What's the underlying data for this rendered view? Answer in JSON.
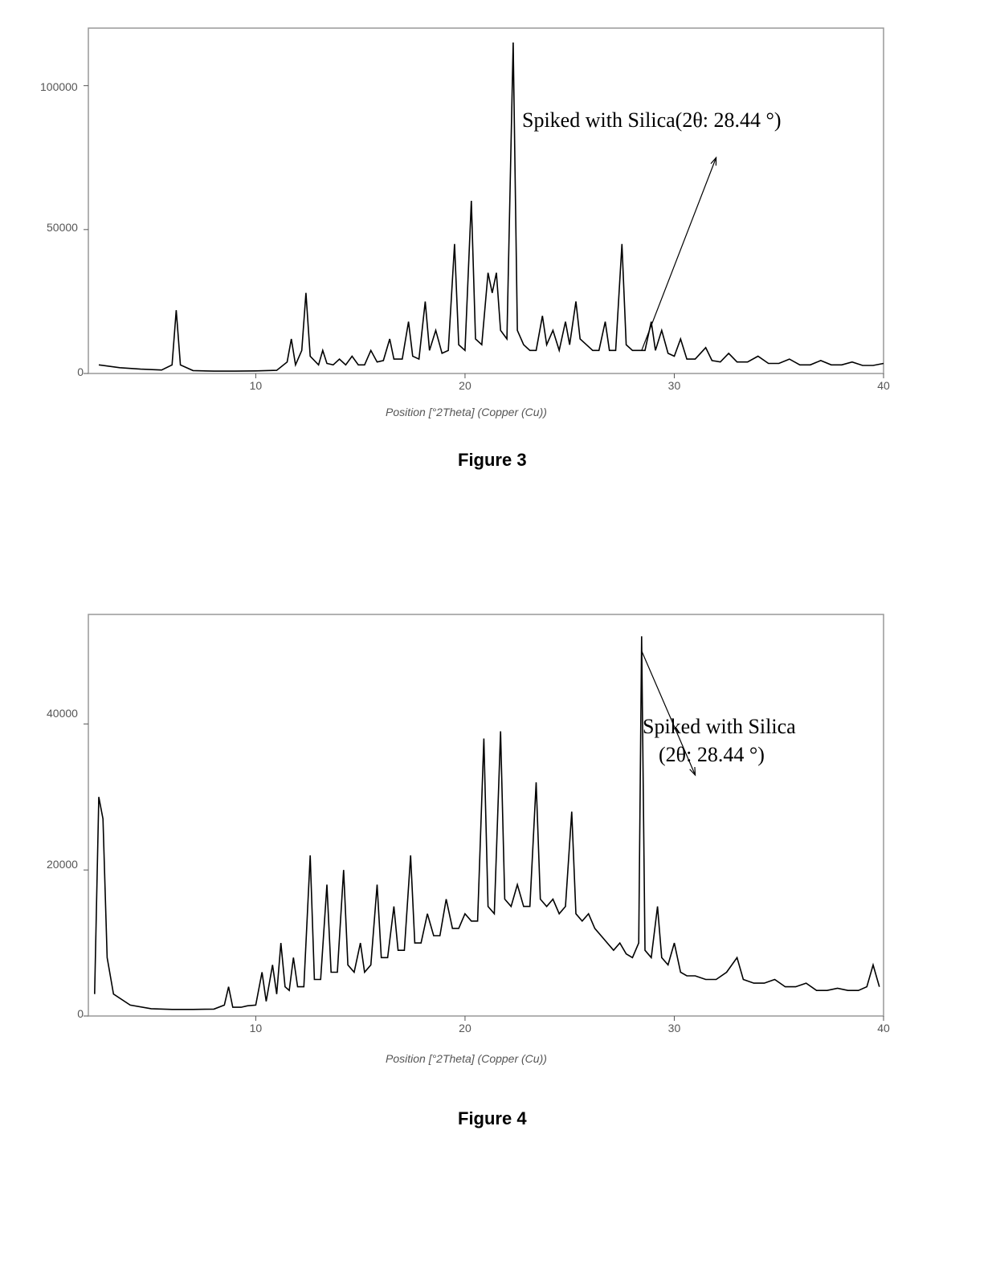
{
  "figure3": {
    "type": "line",
    "caption": "Figure 3",
    "annotation_line1": "Spiked with Silica(2θ: 28.44 °)",
    "xaxis_label": "Position [°2Theta] (Copper (Cu))",
    "xlim": [
      2,
      40
    ],
    "ylim": [
      0,
      120000
    ],
    "xticks": [
      10,
      20,
      30,
      40
    ],
    "yticks": [
      0,
      50000,
      100000
    ],
    "tick_labels_x": [
      "10",
      "20",
      "30",
      "40"
    ],
    "tick_labels_y": [
      "0",
      "50000",
      "100000"
    ],
    "line_color": "#000000",
    "background_color": "#ffffff",
    "border_color": "#999999",
    "arrow_target": [
      28.44,
      8000
    ],
    "arrow_source": [
      32,
      75000
    ],
    "data": [
      [
        2.5,
        3000
      ],
      [
        3.5,
        2000
      ],
      [
        4.5,
        1500
      ],
      [
        5.5,
        1200
      ],
      [
        6.0,
        3000
      ],
      [
        6.2,
        22000
      ],
      [
        6.4,
        3000
      ],
      [
        7.0,
        1000
      ],
      [
        8.0,
        800
      ],
      [
        9.0,
        800
      ],
      [
        10.0,
        900
      ],
      [
        11.0,
        1100
      ],
      [
        11.5,
        4000
      ],
      [
        11.7,
        12000
      ],
      [
        11.9,
        3000
      ],
      [
        12.2,
        8000
      ],
      [
        12.4,
        28000
      ],
      [
        12.6,
        6000
      ],
      [
        13.0,
        3000
      ],
      [
        13.2,
        8000
      ],
      [
        13.4,
        3500
      ],
      [
        13.7,
        3000
      ],
      [
        14.0,
        5000
      ],
      [
        14.3,
        3000
      ],
      [
        14.6,
        6000
      ],
      [
        14.9,
        3000
      ],
      [
        15.2,
        3000
      ],
      [
        15.5,
        8000
      ],
      [
        15.8,
        4000
      ],
      [
        16.1,
        4500
      ],
      [
        16.4,
        12000
      ],
      [
        16.6,
        5000
      ],
      [
        17.0,
        5000
      ],
      [
        17.3,
        18000
      ],
      [
        17.5,
        6000
      ],
      [
        17.8,
        5000
      ],
      [
        18.1,
        25000
      ],
      [
        18.3,
        8000
      ],
      [
        18.6,
        15000
      ],
      [
        18.9,
        7000
      ],
      [
        19.2,
        8000
      ],
      [
        19.5,
        45000
      ],
      [
        19.7,
        10000
      ],
      [
        20.0,
        8000
      ],
      [
        20.3,
        60000
      ],
      [
        20.5,
        12000
      ],
      [
        20.8,
        10000
      ],
      [
        21.1,
        35000
      ],
      [
        21.3,
        28000
      ],
      [
        21.5,
        35000
      ],
      [
        21.7,
        15000
      ],
      [
        22.0,
        12000
      ],
      [
        22.3,
        115000
      ],
      [
        22.5,
        15000
      ],
      [
        22.8,
        10000
      ],
      [
        23.1,
        8000
      ],
      [
        23.4,
        8000
      ],
      [
        23.7,
        20000
      ],
      [
        23.9,
        10000
      ],
      [
        24.2,
        15000
      ],
      [
        24.5,
        8000
      ],
      [
        24.8,
        18000
      ],
      [
        25.0,
        10000
      ],
      [
        25.3,
        25000
      ],
      [
        25.5,
        12000
      ],
      [
        25.8,
        10000
      ],
      [
        26.1,
        8000
      ],
      [
        26.4,
        8000
      ],
      [
        26.7,
        18000
      ],
      [
        26.9,
        8000
      ],
      [
        27.2,
        8000
      ],
      [
        27.5,
        45000
      ],
      [
        27.7,
        10000
      ],
      [
        28.0,
        8000
      ],
      [
        28.3,
        8000
      ],
      [
        28.44,
        8000
      ],
      [
        28.6,
        8000
      ],
      [
        28.9,
        18000
      ],
      [
        29.1,
        8000
      ],
      [
        29.4,
        15000
      ],
      [
        29.7,
        7000
      ],
      [
        30.0,
        6000
      ],
      [
        30.3,
        12000
      ],
      [
        30.6,
        5000
      ],
      [
        31.0,
        5000
      ],
      [
        31.5,
        9000
      ],
      [
        31.8,
        4500
      ],
      [
        32.2,
        4000
      ],
      [
        32.6,
        7000
      ],
      [
        33.0,
        4000
      ],
      [
        33.5,
        4000
      ],
      [
        34.0,
        6000
      ],
      [
        34.5,
        3500
      ],
      [
        35.0,
        3500
      ],
      [
        35.5,
        5000
      ],
      [
        36.0,
        3000
      ],
      [
        36.5,
        3000
      ],
      [
        37.0,
        4500
      ],
      [
        37.5,
        3000
      ],
      [
        38.0,
        3000
      ],
      [
        38.5,
        4000
      ],
      [
        39.0,
        2800
      ],
      [
        39.5,
        2800
      ],
      [
        40.0,
        3500
      ]
    ]
  },
  "figure4": {
    "type": "line",
    "caption": "Figure 4",
    "annotation_line1": "Spiked with Silica",
    "annotation_line2": "(2θ: 28.44 °)",
    "xaxis_label": "Position [°2Theta] (Copper (Cu))",
    "xlim": [
      2,
      40
    ],
    "ylim": [
      0,
      55000
    ],
    "xticks": [
      10,
      20,
      30,
      40
    ],
    "yticks": [
      0,
      20000,
      40000
    ],
    "tick_labels_x": [
      "10",
      "20",
      "30",
      "40"
    ],
    "tick_labels_y": [
      "0",
      "20000",
      "40000"
    ],
    "line_color": "#000000",
    "background_color": "#ffffff",
    "border_color": "#999999",
    "arrow_target": [
      28.44,
      50000
    ],
    "arrow_source": [
      31,
      33000
    ],
    "data": [
      [
        2.3,
        3000
      ],
      [
        2.5,
        30000
      ],
      [
        2.7,
        27000
      ],
      [
        2.9,
        8000
      ],
      [
        3.2,
        3000
      ],
      [
        4.0,
        1500
      ],
      [
        5.0,
        1000
      ],
      [
        6.0,
        900
      ],
      [
        7.0,
        900
      ],
      [
        8.0,
        950
      ],
      [
        8.5,
        1500
      ],
      [
        8.7,
        4000
      ],
      [
        8.9,
        1200
      ],
      [
        9.3,
        1200
      ],
      [
        9.6,
        1400
      ],
      [
        10.0,
        1500
      ],
      [
        10.3,
        6000
      ],
      [
        10.5,
        2000
      ],
      [
        10.8,
        7000
      ],
      [
        11.0,
        3000
      ],
      [
        11.2,
        10000
      ],
      [
        11.4,
        4000
      ],
      [
        11.6,
        3500
      ],
      [
        11.8,
        8000
      ],
      [
        12.0,
        4000
      ],
      [
        12.3,
        4000
      ],
      [
        12.6,
        22000
      ],
      [
        12.8,
        5000
      ],
      [
        13.1,
        5000
      ],
      [
        13.4,
        18000
      ],
      [
        13.6,
        6000
      ],
      [
        13.9,
        6000
      ],
      [
        14.2,
        20000
      ],
      [
        14.4,
        7000
      ],
      [
        14.7,
        6000
      ],
      [
        15.0,
        10000
      ],
      [
        15.2,
        6000
      ],
      [
        15.5,
        7000
      ],
      [
        15.8,
        18000
      ],
      [
        16.0,
        8000
      ],
      [
        16.3,
        8000
      ],
      [
        16.6,
        15000
      ],
      [
        16.8,
        9000
      ],
      [
        17.1,
        9000
      ],
      [
        17.4,
        22000
      ],
      [
        17.6,
        10000
      ],
      [
        17.9,
        10000
      ],
      [
        18.2,
        14000
      ],
      [
        18.5,
        11000
      ],
      [
        18.8,
        11000
      ],
      [
        19.1,
        16000
      ],
      [
        19.4,
        12000
      ],
      [
        19.7,
        12000
      ],
      [
        20.0,
        14000
      ],
      [
        20.3,
        13000
      ],
      [
        20.6,
        13000
      ],
      [
        20.9,
        38000
      ],
      [
        21.1,
        15000
      ],
      [
        21.4,
        14000
      ],
      [
        21.7,
        39000
      ],
      [
        21.9,
        16000
      ],
      [
        22.2,
        15000
      ],
      [
        22.5,
        18000
      ],
      [
        22.8,
        15000
      ],
      [
        23.1,
        15000
      ],
      [
        23.4,
        32000
      ],
      [
        23.6,
        16000
      ],
      [
        23.9,
        15000
      ],
      [
        24.2,
        16000
      ],
      [
        24.5,
        14000
      ],
      [
        24.8,
        15000
      ],
      [
        25.1,
        28000
      ],
      [
        25.3,
        14000
      ],
      [
        25.6,
        13000
      ],
      [
        25.9,
        14000
      ],
      [
        26.2,
        12000
      ],
      [
        26.5,
        11000
      ],
      [
        26.8,
        10000
      ],
      [
        27.1,
        9000
      ],
      [
        27.4,
        10000
      ],
      [
        27.7,
        8500
      ],
      [
        28.0,
        8000
      ],
      [
        28.3,
        10000
      ],
      [
        28.44,
        52000
      ],
      [
        28.6,
        9000
      ],
      [
        28.9,
        8000
      ],
      [
        29.2,
        15000
      ],
      [
        29.4,
        8000
      ],
      [
        29.7,
        7000
      ],
      [
        30.0,
        10000
      ],
      [
        30.3,
        6000
      ],
      [
        30.6,
        5500
      ],
      [
        31.0,
        5500
      ],
      [
        31.5,
        5000
      ],
      [
        32.0,
        5000
      ],
      [
        32.5,
        6000
      ],
      [
        33.0,
        8000
      ],
      [
        33.3,
        5000
      ],
      [
        33.8,
        4500
      ],
      [
        34.3,
        4500
      ],
      [
        34.8,
        5000
      ],
      [
        35.3,
        4000
      ],
      [
        35.8,
        4000
      ],
      [
        36.3,
        4500
      ],
      [
        36.8,
        3500
      ],
      [
        37.3,
        3500
      ],
      [
        37.8,
        3800
      ],
      [
        38.3,
        3500
      ],
      [
        38.8,
        3500
      ],
      [
        39.2,
        4000
      ],
      [
        39.5,
        7000
      ],
      [
        39.8,
        4000
      ]
    ]
  }
}
